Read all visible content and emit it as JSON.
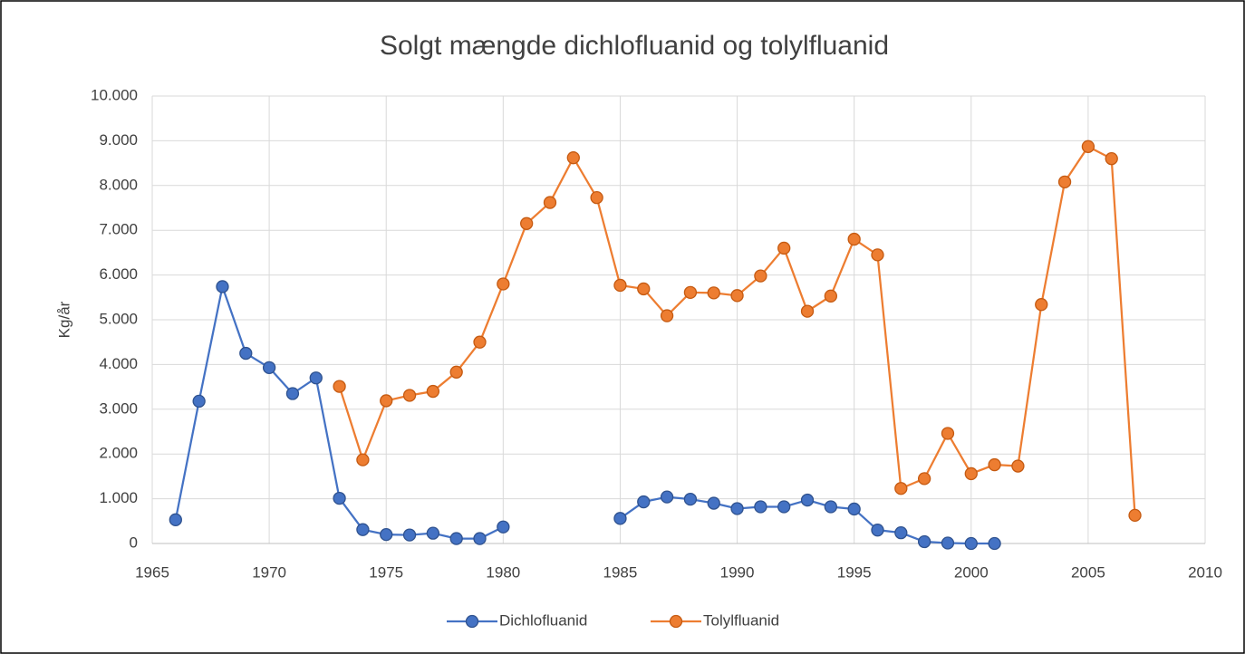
{
  "chart_data": {
    "type": "line",
    "title": "Solgt mængde dichlofluanid og tolylfluanid",
    "y_label": "Kg/år",
    "x": [
      1966,
      1967,
      1968,
      1969,
      1970,
      1971,
      1972,
      1973,
      1974,
      1975,
      1976,
      1977,
      1978,
      1979,
      1980,
      1981,
      1982,
      1983,
      1984,
      1985,
      1986,
      1987,
      1988,
      1989,
      1990,
      1991,
      1992,
      1993,
      1994,
      1995,
      1996,
      1997,
      1998,
      1999,
      2000,
      2001,
      2002,
      2003,
      2004,
      2005,
      2006,
      2007
    ],
    "series": [
      {
        "name": "Dichlofluanid",
        "color": "#4472c4",
        "marker_edge": "#2f528f",
        "values": [
          530,
          3180,
          5740,
          4250,
          3930,
          3350,
          3700,
          1010,
          310,
          200,
          190,
          230,
          110,
          110,
          370,
          null,
          null,
          null,
          null,
          560,
          930,
          1040,
          990,
          900,
          780,
          820,
          820,
          970,
          820,
          770,
          300,
          240,
          40,
          10,
          0,
          0,
          null,
          null,
          null,
          null,
          null,
          null
        ]
      },
      {
        "name": "Tolylfluanid",
        "color": "#ed7d31",
        "marker_edge": "#c55a11",
        "values": [
          null,
          null,
          null,
          null,
          null,
          null,
          null,
          3510,
          1870,
          3190,
          3310,
          3400,
          3830,
          4500,
          5800,
          7150,
          7620,
          8620,
          7730,
          5770,
          5690,
          5090,
          5610,
          5600,
          5540,
          5980,
          6600,
          5190,
          5530,
          6800,
          6450,
          1230,
          1450,
          2460,
          1560,
          1760,
          1730,
          5340,
          8080,
          8870,
          8600,
          630
        ]
      }
    ],
    "xlim": [
      1965,
      2010
    ],
    "xticks": [
      1965,
      1970,
      1975,
      1980,
      1985,
      1990,
      1995,
      2000,
      2005,
      2010
    ],
    "ylim": [
      0,
      10000
    ],
    "yticks": [
      0,
      {
        "value": 1000,
        "label": "1.000"
      },
      {
        "value": 2000,
        "label": "2.000"
      },
      {
        "value": 3000,
        "label": "3.000"
      },
      {
        "value": 4000,
        "label": "4.000"
      },
      {
        "value": 5000,
        "label": "5.000"
      },
      {
        "value": 6000,
        "label": "6.000"
      },
      {
        "value": 7000,
        "label": "7.000"
      },
      {
        "value": 8000,
        "label": "8.000"
      },
      {
        "value": 9000,
        "label": "9.000"
      },
      {
        "value": 10000,
        "label": "10.000"
      }
    ],
    "grid": true,
    "legend": "bottom"
  }
}
